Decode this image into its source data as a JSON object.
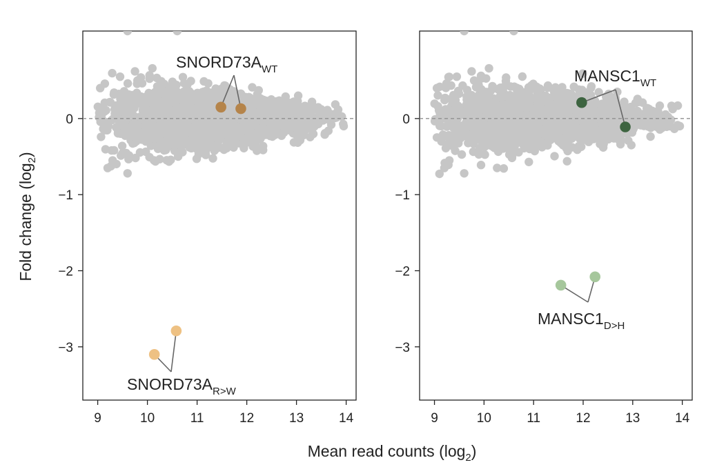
{
  "chart_data": [
    {
      "type": "scatter",
      "panel": "left",
      "xlim": [
        8.7,
        14.2
      ],
      "ylim": [
        -3.7,
        1.15
      ],
      "xticks": [
        9,
        10,
        11,
        12,
        13,
        14
      ],
      "yticks": [
        0,
        -1,
        -2,
        -3
      ],
      "reference_line_y": 0,
      "ylabel": "Fold change (log2)",
      "ylabel_main": "Fold change (log",
      "ylabel_sub": "2",
      "ylabel_end": ")",
      "background_color": "#c6c6c6",
      "background_points": {
        "description": "~thousands of gray points centered near y=0",
        "x_range": [
          9.0,
          14.0
        ],
        "y_range": [
          -0.8,
          1.15
        ]
      },
      "highlight_series": [
        {
          "name": "SNORD73A_WT",
          "label_main": "SNORD73A",
          "label_sub": "WT",
          "color": "#b5844a",
          "points": [
            {
              "x": 11.48,
              "y": 0.15
            },
            {
              "x": 11.88,
              "y": 0.13
            }
          ],
          "label_position": "above"
        },
        {
          "name": "SNORD73A_R>W",
          "label_main": "SNORD73A",
          "label_sub": "R>W",
          "color": "#eec183",
          "points": [
            {
              "x": 10.14,
              "y": -3.1
            },
            {
              "x": 10.58,
              "y": -2.79
            }
          ],
          "label_position": "below"
        }
      ]
    },
    {
      "type": "scatter",
      "panel": "right",
      "xlim": [
        8.7,
        14.2
      ],
      "ylim": [
        -3.7,
        1.15
      ],
      "xticks": [
        9,
        10,
        11,
        12,
        13,
        14
      ],
      "yticks": [
        0,
        -1,
        -2,
        -3
      ],
      "reference_line_y": 0,
      "xlabel": "Mean read counts (log2)",
      "xlabel_main": "Mean read counts (log",
      "xlabel_sub": "2",
      "xlabel_end": ")",
      "background_color": "#c6c6c6",
      "background_points": {
        "description": "~thousands of gray points centered near y=0",
        "x_range": [
          9.0,
          14.0
        ],
        "y_range": [
          -0.8,
          1.15
        ]
      },
      "highlight_series": [
        {
          "name": "MANSC1_WT",
          "label_main": "MANSC1",
          "label_sub": "WT",
          "color": "#3d6440",
          "points": [
            {
              "x": 11.97,
              "y": 0.21
            },
            {
              "x": 12.85,
              "y": -0.11
            }
          ],
          "label_position": "above"
        },
        {
          "name": "MANSC1_D>H",
          "label_main": "MANSC1",
          "label_sub": "D>H",
          "color": "#a6c79c",
          "points": [
            {
              "x": 11.55,
              "y": -2.19
            },
            {
              "x": 12.24,
              "y": -2.08
            }
          ],
          "label_position": "below"
        }
      ]
    }
  ]
}
